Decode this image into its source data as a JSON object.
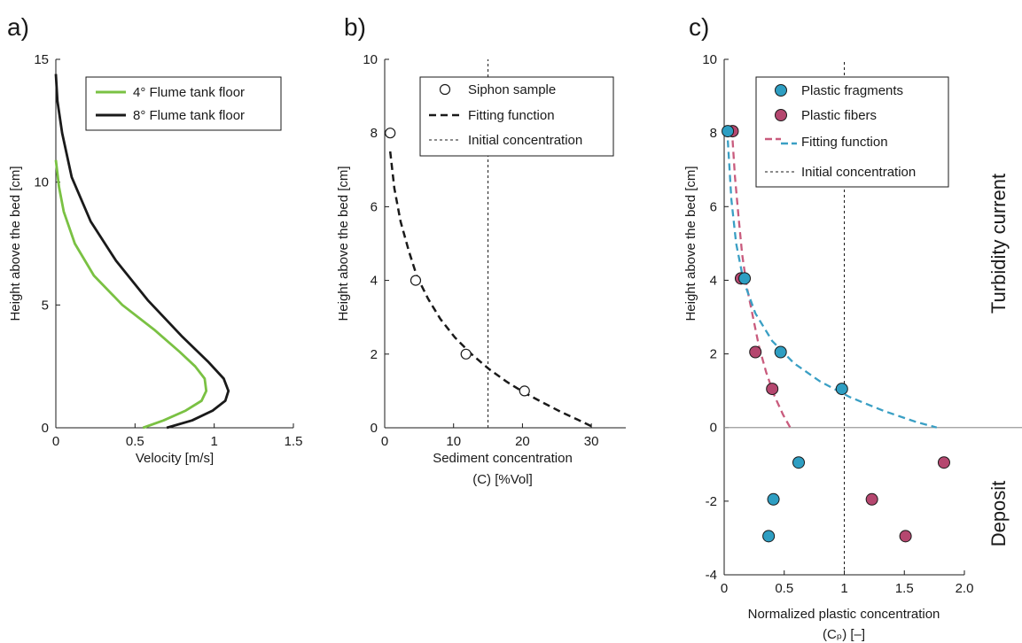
{
  "chart_data": [
    {
      "panel_label": "a)",
      "type": "line",
      "xlabel": "Velocity [m/s]",
      "ylabel": "Height above the bed [cm]",
      "xlim": [
        0,
        1.5
      ],
      "ylim": [
        0,
        15
      ],
      "xticks": [
        "0",
        "0.5",
        "1",
        "1.5"
      ],
      "yticks": [
        "0",
        "5",
        "10",
        "15"
      ],
      "legend_position": "top-right",
      "series": [
        {
          "name": "4° Flume tank floor",
          "color": "#7ac143",
          "x": [
            0.55,
            0.68,
            0.82,
            0.92,
            0.95,
            0.94,
            0.88,
            0.78,
            0.62,
            0.42,
            0.24,
            0.12,
            0.05,
            0.02,
            0.0
          ],
          "y": [
            0.0,
            0.3,
            0.7,
            1.1,
            1.5,
            2.0,
            2.5,
            3.1,
            4.0,
            5.0,
            6.2,
            7.5,
            8.8,
            9.8,
            10.9
          ]
        },
        {
          "name": "8° Flume tank floor",
          "color": "#1a1a1a",
          "x": [
            0.7,
            0.86,
            0.99,
            1.07,
            1.09,
            1.06,
            0.96,
            0.8,
            0.58,
            0.38,
            0.22,
            0.1,
            0.04,
            0.01,
            0.0
          ],
          "y": [
            0.0,
            0.3,
            0.7,
            1.1,
            1.5,
            2.0,
            2.7,
            3.7,
            5.2,
            6.8,
            8.4,
            10.2,
            12.0,
            13.3,
            14.4
          ]
        }
      ]
    },
    {
      "panel_label": "b)",
      "type": "scatter",
      "xlabel": "Sediment concentration",
      "xlabel2": "(C) [%Vol]",
      "ylabel": "Height above the bed [cm]",
      "xlim": [
        0,
        35
      ],
      "ylim": [
        0,
        10
      ],
      "xticks": [
        "0",
        "10",
        "20",
        "30"
      ],
      "yticks": [
        "0",
        "2",
        "4",
        "6",
        "8",
        "10"
      ],
      "legend_position": "top-right",
      "series": [
        {
          "name": "Siphon sample",
          "x": [
            0.8,
            4.5,
            11.8,
            20.3
          ],
          "y": [
            8.0,
            4.0,
            2.0,
            1.0
          ]
        },
        {
          "name": "Fitting function",
          "x": [
            0.8,
            1.4,
            2.3,
            3.5,
            4.7,
            6.3,
            8.1,
            10.2,
            12.6,
            15.1,
            17.7,
            20.3,
            23.0,
            25.6,
            28.0,
            30.5
          ],
          "y": [
            7.5,
            6.5,
            5.6,
            4.8,
            4.1,
            3.5,
            2.95,
            2.45,
            2.0,
            1.6,
            1.25,
            0.95,
            0.68,
            0.43,
            0.22,
            0.0
          ]
        },
        {
          "name": "Initial concentration",
          "x": [
            15,
            15
          ],
          "y": [
            0,
            10
          ]
        }
      ]
    },
    {
      "panel_label": "c)",
      "type": "scatter",
      "xlabel": "Normalized plastic concentration",
      "xlabel2": "(Cₚ) [–]",
      "ylabel": "Height above the bed [cm]",
      "xlim": [
        0,
        2
      ],
      "ylim": [
        -4,
        10
      ],
      "xticks": [
        "0",
        "0.5",
        "1",
        "1.5",
        "2.0"
      ],
      "yticks": [
        "-4",
        "-2",
        "0",
        "2",
        "4",
        "6",
        "8",
        "10"
      ],
      "legend_position": "top-right",
      "side_labels": {
        "upper": "Turbidity current",
        "lower": "Deposit"
      },
      "series": [
        {
          "name": "Plastic fragments",
          "color": "#2e9ec2",
          "x": [
            0.03,
            0.17,
            0.47,
            0.98,
            0.62,
            0.41,
            0.37
          ],
          "y": [
            8.05,
            4.05,
            2.05,
            1.05,
            -0.95,
            -1.95,
            -2.95
          ]
        },
        {
          "name": "Plastic fibers",
          "color": "#b5476f",
          "x": [
            0.07,
            0.14,
            0.26,
            0.4,
            1.83,
            1.23,
            1.51
          ],
          "y": [
            8.05,
            4.05,
            2.05,
            1.05,
            -0.95,
            -1.95,
            -2.95
          ]
        },
        {
          "name": "Fitting function",
          "color": "#c95b7d",
          "x": [
            0.07,
            0.09,
            0.12,
            0.15,
            0.19,
            0.24,
            0.29,
            0.35,
            0.42,
            0.49,
            0.55
          ],
          "y": [
            7.8,
            6.8,
            5.7,
            4.7,
            3.8,
            3.0,
            2.2,
            1.5,
            0.85,
            0.35,
            0.0
          ]
        },
        {
          "name": "Fitting function (fragments)",
          "color": "#3a9fc4",
          "x": [
            0.03,
            0.06,
            0.1,
            0.16,
            0.26,
            0.4,
            0.58,
            0.8,
            1.05,
            1.33,
            1.6,
            1.77
          ],
          "y": [
            7.8,
            6.2,
            5.0,
            4.0,
            3.1,
            2.35,
            1.75,
            1.25,
            0.82,
            0.45,
            0.15,
            0.0
          ]
        },
        {
          "name": "Initial concentration",
          "x": [
            1,
            1
          ],
          "y": [
            -4,
            10
          ]
        }
      ]
    }
  ]
}
